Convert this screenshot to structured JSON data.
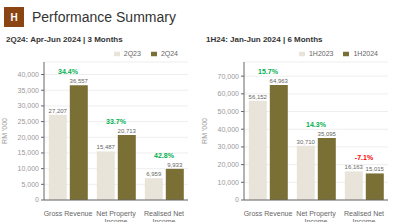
{
  "title": "Performance Summary",
  "annotations": [
    {
      "text": "H",
      "color": "#8B4513"
    }
  ],
  "chart_data": [
    {
      "type": "bar",
      "subtitle": "2Q24: Apr-Jun 2024 | 3 Months",
      "ylabel": "RM '000",
      "categories": [
        "Gross Revenue",
        "Net Property\nIncome",
        "Realised Net\nIncome"
      ],
      "series": [
        {
          "name": "2Q23",
          "color": "#e8e4d9",
          "values": [
            27207,
            15487,
            6959
          ],
          "value_labels": [
            "27,207",
            "15,487",
            "6,959"
          ]
        },
        {
          "name": "2Q24",
          "color": "#7a7035",
          "values": [
            36557,
            20713,
            9933
          ],
          "value_labels": [
            "36,557",
            "20,713",
            "9,933"
          ]
        }
      ],
      "annotations": [
        {
          "text": "34.4%",
          "color": "#00b050"
        },
        {
          "text": "33.7%",
          "color": "#00b050"
        },
        {
          "text": "42.8%",
          "color": "#00b050"
        }
      ],
      "ylim": [
        0,
        44000
      ],
      "yticks": [
        0,
        {
          "value": 5000,
          "label": "5,000"
        },
        {
          "value": 10000,
          "label": "10,000"
        },
        {
          "value": 15000,
          "label": "15,000"
        },
        {
          "value": 20000,
          "label": "20,000"
        },
        {
          "value": 25000,
          "label": "25,000"
        },
        {
          "value": 30000,
          "label": "30,000"
        },
        {
          "value": 35000,
          "label": "35,000"
        },
        {
          "value": 40000,
          "label": "40,000"
        }
      ],
      "grid": true,
      "legend": "upper right",
      "data_labels": true
    },
    {
      "type": "bar",
      "subtitle": "1H24: Jan-Jun 2024 | 6 Months",
      "ylabel": "RM '000",
      "categories": [
        "Gross Revenue",
        "Net Property\nIncome",
        "Realised Net\nIncome"
      ],
      "series": [
        {
          "name": "1H2023",
          "color": "#e8e4d9",
          "values": [
            56152,
            30710,
            16163
          ],
          "value_labels": [
            "56,152",
            "30,710",
            "16,163"
          ]
        },
        {
          "name": "1H2024",
          "color": "#7a7035",
          "values": [
            64963,
            35095,
            15015
          ],
          "value_labels": [
            "64,963",
            "35,095",
            "15,015"
          ]
        }
      ],
      "annotations": [
        {
          "text": "15.7%",
          "color": "#00b050"
        },
        {
          "text": "14.3%",
          "color": "#00b050"
        },
        {
          "text": "-7.1%",
          "color": "#ff0000"
        }
      ],
      "ylim": [
        0,
        78000
      ],
      "yticks": [
        0,
        {
          "value": 10000,
          "label": "10,000"
        },
        {
          "value": 20000,
          "label": "20,000"
        },
        {
          "value": 30000,
          "label": "30,000"
        },
        {
          "value": 40000,
          "label": "40,000"
        },
        {
          "value": 50000,
          "label": "50,000"
        },
        {
          "value": 60000,
          "label": "60,000"
        },
        {
          "value": 70000,
          "label": "70,000"
        }
      ],
      "grid": true,
      "legend": "upper right",
      "data_labels": true
    }
  ]
}
